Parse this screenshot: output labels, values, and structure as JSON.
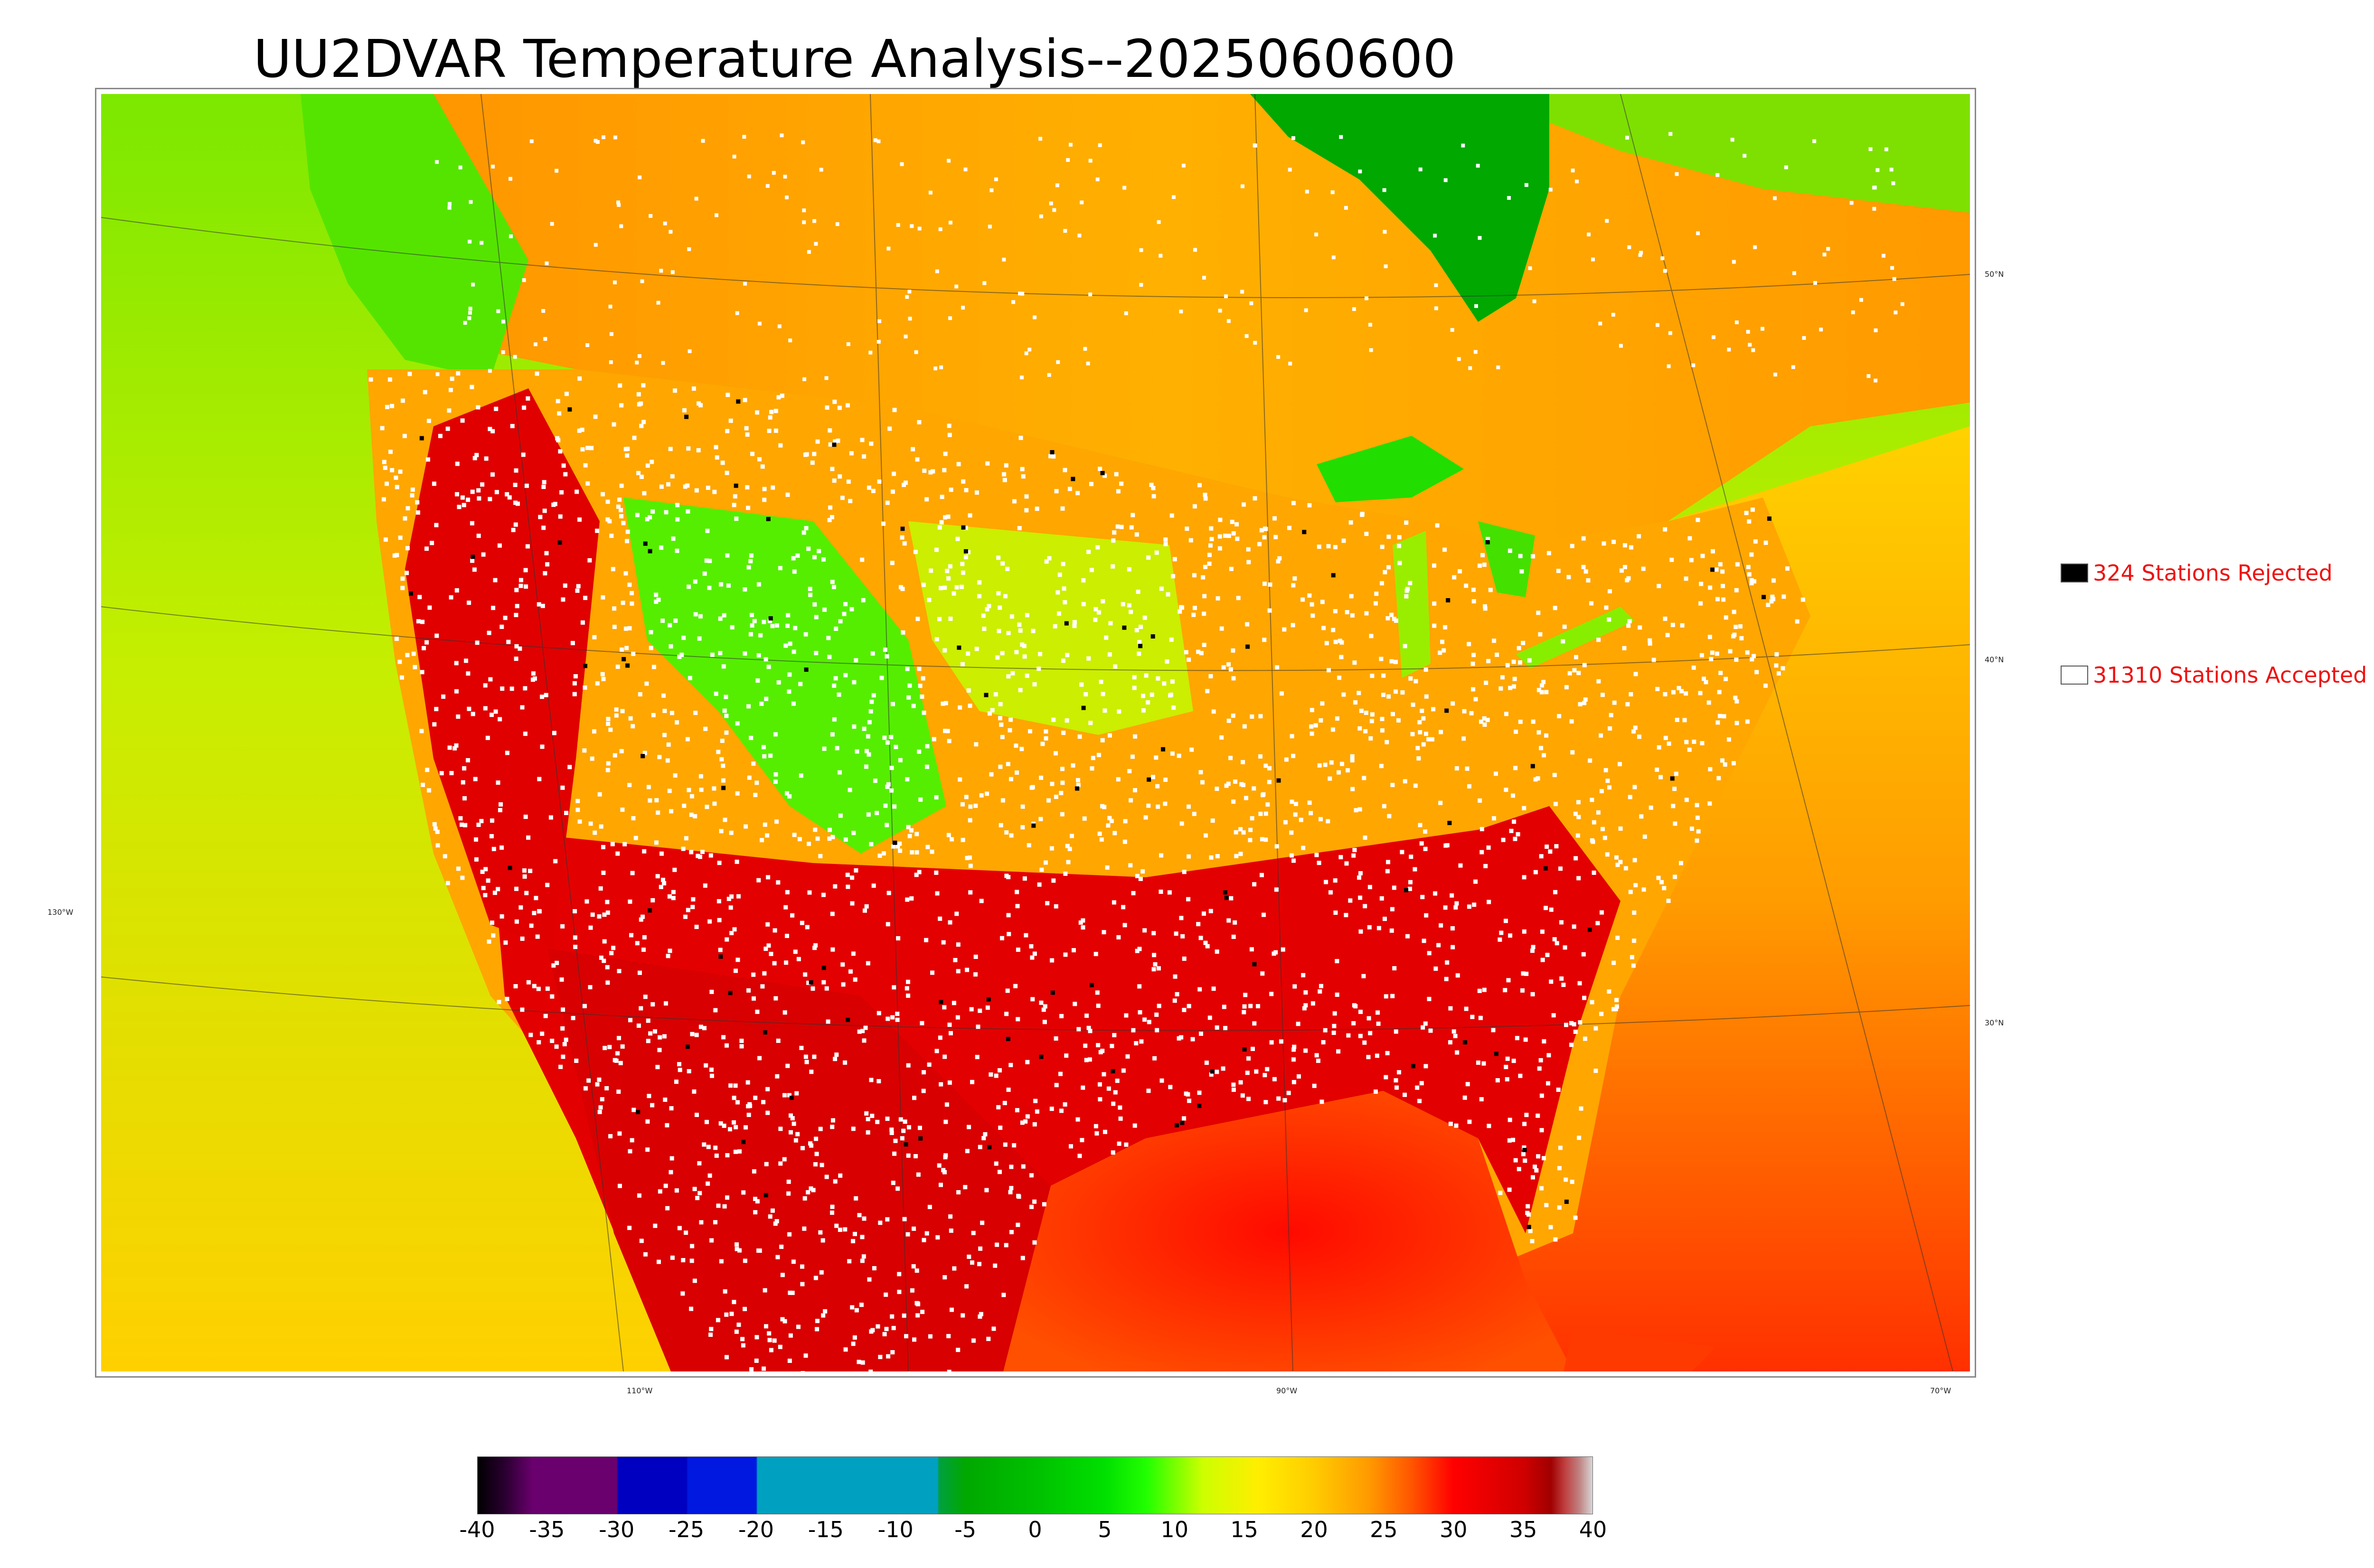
{
  "title": "UU2DVAR Temperature Analysis--2025060600",
  "map": {
    "lon_labels": [
      "130°W",
      "110°W",
      "90°W",
      "70°W"
    ],
    "lat_labels": [
      "50°N",
      "40°N",
      "30°N"
    ],
    "colors": {
      "ocean_west_far": "#b8e800",
      "ocean_west_near": "#e6ee00",
      "ocean_gulf": "#ff1a00",
      "ocean_atlantic": "#ff7a00",
      "canada_plains": "#ffb200",
      "hudson_bay": "#00a800",
      "great_lakes": "#22dd00",
      "southern_us": "#e00000",
      "northern_us": "#ffaa00",
      "rockies": "#44ee00",
      "accepted_station": "#ffffff",
      "rejected_station": "#000000"
    }
  },
  "legend": {
    "rejected": {
      "label": "324 Stations Rejected",
      "count": 324,
      "color": "#000000"
    },
    "accepted": {
      "label": "31310 Stations Accepted",
      "count": 31310,
      "color": "#ffffff"
    }
  },
  "colorbar": {
    "ticks": [
      "-40",
      "-35",
      "-30",
      "-25",
      "-20",
      "-15",
      "-10",
      "-5",
      "0",
      "5",
      "10",
      "15",
      "20",
      "25",
      "30",
      "35",
      "40"
    ],
    "min": -40,
    "max": 40,
    "stops": [
      [
        -40,
        "#000000"
      ],
      [
        -38,
        "#2a0030"
      ],
      [
        -36,
        "#6a006e"
      ],
      [
        -30,
        "#6a006e"
      ],
      [
        -29.9,
        "#0000c0"
      ],
      [
        -25,
        "#0000c0"
      ],
      [
        -24.9,
        "#0018e0"
      ],
      [
        -20,
        "#0018e0"
      ],
      [
        -19.9,
        "#00a0c0"
      ],
      [
        -7,
        "#00a0c0"
      ],
      [
        -6.9,
        "#00a040"
      ],
      [
        -5,
        "#00a800"
      ],
      [
        0,
        "#00c000"
      ],
      [
        5,
        "#00e000"
      ],
      [
        8,
        "#22ff00"
      ],
      [
        12,
        "#ccff00"
      ],
      [
        16,
        "#ffee00"
      ],
      [
        20,
        "#ffcc00"
      ],
      [
        24,
        "#ff9900"
      ],
      [
        27,
        "#ff5500"
      ],
      [
        30,
        "#ff0000"
      ],
      [
        35,
        "#d00000"
      ],
      [
        37,
        "#a00000"
      ],
      [
        38,
        "#c04040"
      ],
      [
        39,
        "#c08080"
      ],
      [
        40,
        "#d8d8d8"
      ]
    ]
  }
}
